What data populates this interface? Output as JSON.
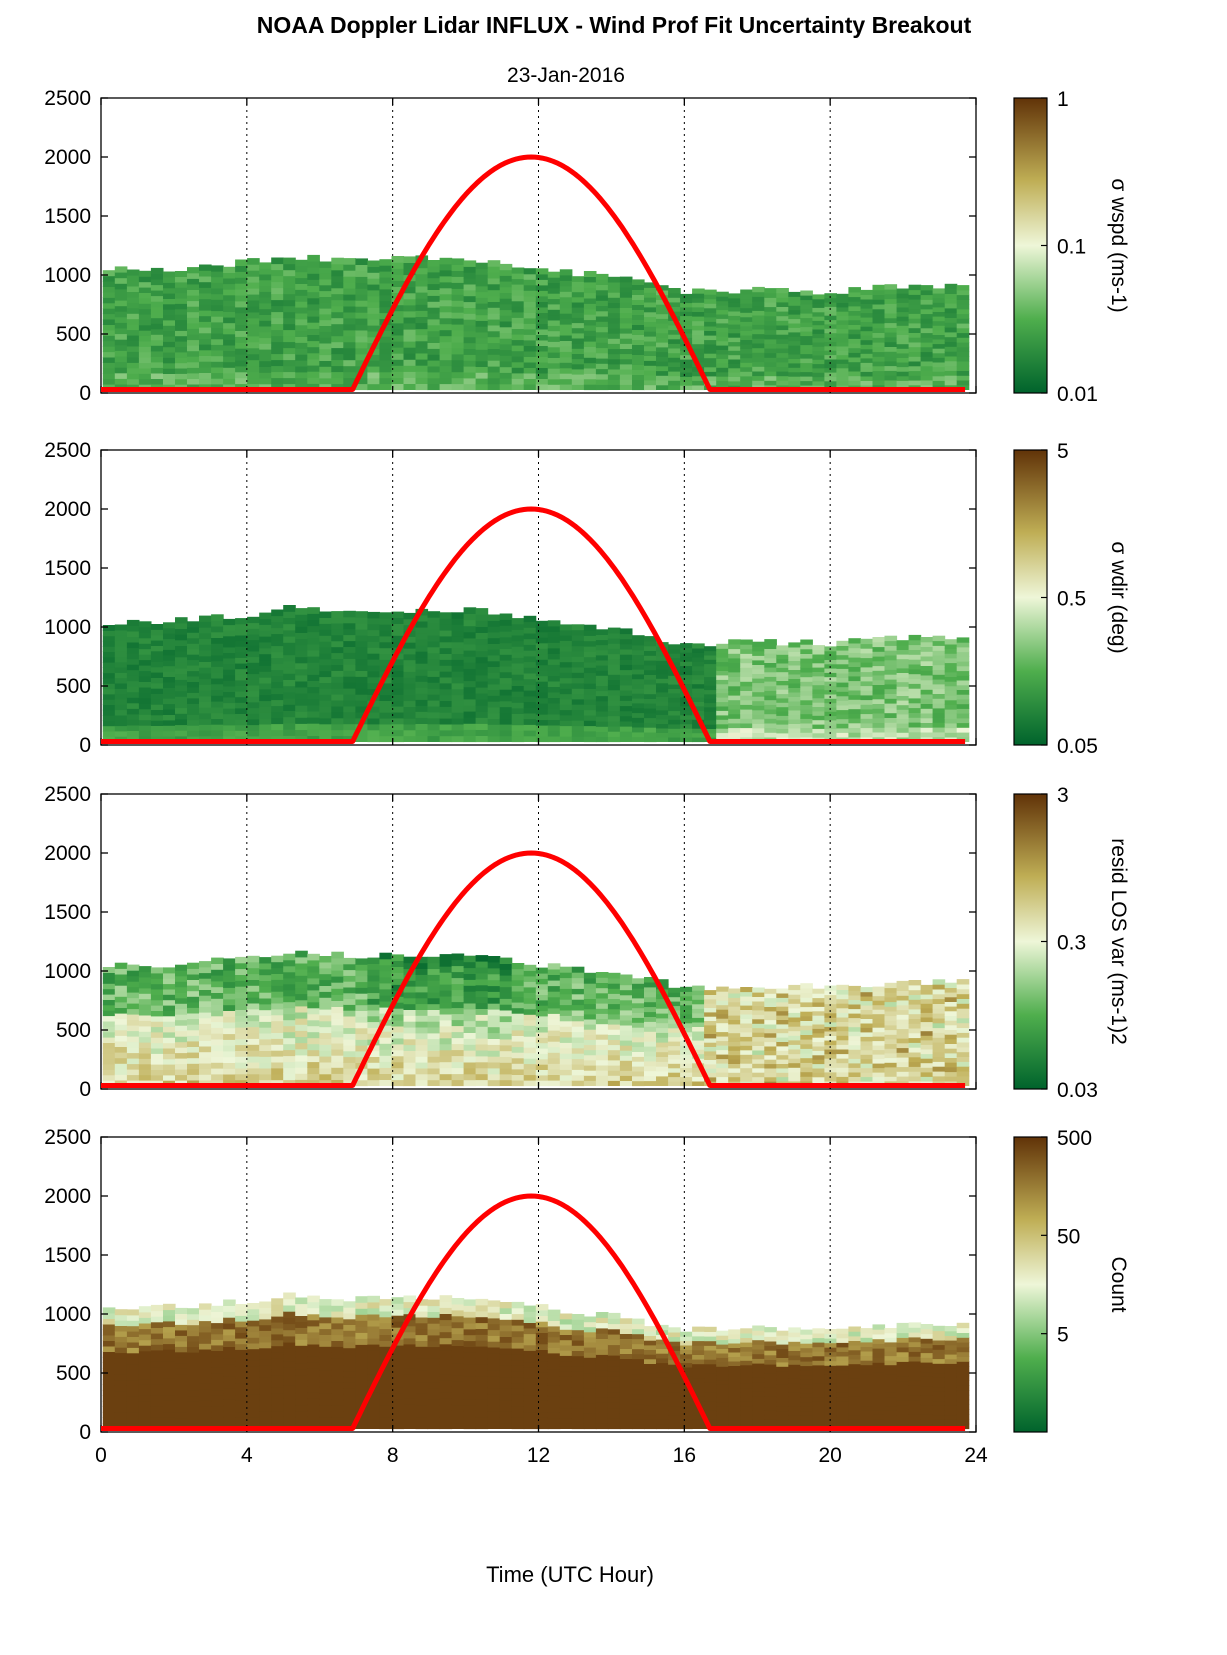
{
  "title": "NOAA Doppler Lidar INFLUX - Wind Prof Fit Uncertainty Breakout",
  "subtitle": "23-Jan-2016",
  "xlabel": "Time (UTC Hour)",
  "colors": {
    "sun_curve": "#ff0000",
    "colormap_low": "#00632c",
    "colormap_mid": "#f2f6d6",
    "colormap_high": "#613308"
  },
  "chart_data": [
    {
      "type": "heatmap",
      "xlim": [
        0,
        24
      ],
      "ylim": [
        0,
        2500
      ],
      "xticks": [
        "0",
        "4",
        "8",
        "12",
        "16",
        "20",
        "24"
      ],
      "yticks": [
        "0",
        "500",
        "1000",
        "1500",
        "2000",
        "2500"
      ],
      "grid": "vertical dotted",
      "colorbar": {
        "label": "σ wspd (ms-1)",
        "scale": "log",
        "range": [
          0.01,
          1
        ],
        "ticks": [
          "0.01",
          "0.1",
          "1"
        ]
      },
      "data_top_m": [
        [
          0,
          1040
        ],
        [
          2,
          1060
        ],
        [
          4,
          1110
        ],
        [
          5,
          1160
        ],
        [
          7,
          1130
        ],
        [
          9,
          1150
        ],
        [
          10,
          1150
        ],
        [
          12,
          1060
        ],
        [
          14,
          980
        ],
        [
          16,
          860
        ],
        [
          18,
          880
        ],
        [
          20,
          860
        ],
        [
          22,
          910
        ],
        [
          24,
          900
        ]
      ],
      "curve": {
        "peak_hour": 11.8,
        "peak": 2000,
        "rise_hour": 6.9,
        "set_hour": 16.7,
        "base": 30
      }
    },
    {
      "type": "heatmap",
      "xlim": [
        0,
        24
      ],
      "ylim": [
        0,
        2500
      ],
      "xticks": [
        "0",
        "4",
        "8",
        "12",
        "16",
        "20",
        "24"
      ],
      "yticks": [
        "0",
        "500",
        "1000",
        "1500",
        "2000",
        "2500"
      ],
      "grid": "vertical dotted",
      "colorbar": {
        "label": "σ wdir (deg)",
        "scale": "log",
        "range": [
          0.05,
          5
        ],
        "ticks": [
          "0.05",
          "0.5",
          "5"
        ]
      },
      "data_top_m": [
        [
          0,
          1040
        ],
        [
          2,
          1060
        ],
        [
          4,
          1110
        ],
        [
          5,
          1160
        ],
        [
          7,
          1130
        ],
        [
          9,
          1150
        ],
        [
          10,
          1150
        ],
        [
          12,
          1060
        ],
        [
          14,
          980
        ],
        [
          16,
          860
        ],
        [
          18,
          880
        ],
        [
          20,
          860
        ],
        [
          22,
          910
        ],
        [
          24,
          900
        ]
      ],
      "curve": {
        "peak_hour": 11.8,
        "peak": 2000,
        "rise_hour": 6.9,
        "set_hour": 16.7,
        "base": 30
      }
    },
    {
      "type": "heatmap",
      "xlim": [
        0,
        24
      ],
      "ylim": [
        0,
        2500
      ],
      "xticks": [
        "0",
        "4",
        "8",
        "12",
        "16",
        "20",
        "24"
      ],
      "yticks": [
        "0",
        "500",
        "1000",
        "1500",
        "2000",
        "2500"
      ],
      "grid": "vertical dotted",
      "colorbar": {
        "label": "resid LOS var (ms-1)2",
        "scale": "log",
        "range": [
          0.03,
          3
        ],
        "ticks": [
          "0.03",
          "0.3",
          "3"
        ]
      },
      "data_top_m": [
        [
          0,
          1040
        ],
        [
          2,
          1060
        ],
        [
          4,
          1110
        ],
        [
          5,
          1160
        ],
        [
          7,
          1130
        ],
        [
          9,
          1150
        ],
        [
          10,
          1150
        ],
        [
          12,
          1060
        ],
        [
          14,
          980
        ],
        [
          16,
          860
        ],
        [
          18,
          880
        ],
        [
          20,
          860
        ],
        [
          22,
          910
        ],
        [
          24,
          900
        ]
      ],
      "curve": {
        "peak_hour": 11.8,
        "peak": 2000,
        "rise_hour": 6.9,
        "set_hour": 16.7,
        "base": 30
      }
    },
    {
      "type": "heatmap",
      "xlim": [
        0,
        24
      ],
      "ylim": [
        0,
        2500
      ],
      "xticks": [
        "0",
        "4",
        "8",
        "12",
        "16",
        "20",
        "24"
      ],
      "yticks": [
        "0",
        "500",
        "1000",
        "1500",
        "2000",
        "2500"
      ],
      "grid": "vertical dotted",
      "colorbar": {
        "label": "Count",
        "scale": "log",
        "range": [
          0.5,
          500
        ],
        "ticks": [
          "5",
          "50",
          "500"
        ]
      },
      "data_top_m": [
        [
          0,
          1040
        ],
        [
          2,
          1060
        ],
        [
          4,
          1110
        ],
        [
          5,
          1160
        ],
        [
          7,
          1130
        ],
        [
          9,
          1150
        ],
        [
          10,
          1150
        ],
        [
          12,
          1060
        ],
        [
          14,
          980
        ],
        [
          16,
          860
        ],
        [
          18,
          880
        ],
        [
          20,
          860
        ],
        [
          22,
          910
        ],
        [
          24,
          900
        ]
      ],
      "curve": {
        "peak_hour": 11.8,
        "peak": 2000,
        "rise_hour": 6.9,
        "set_hour": 16.7,
        "base": 30
      }
    }
  ]
}
